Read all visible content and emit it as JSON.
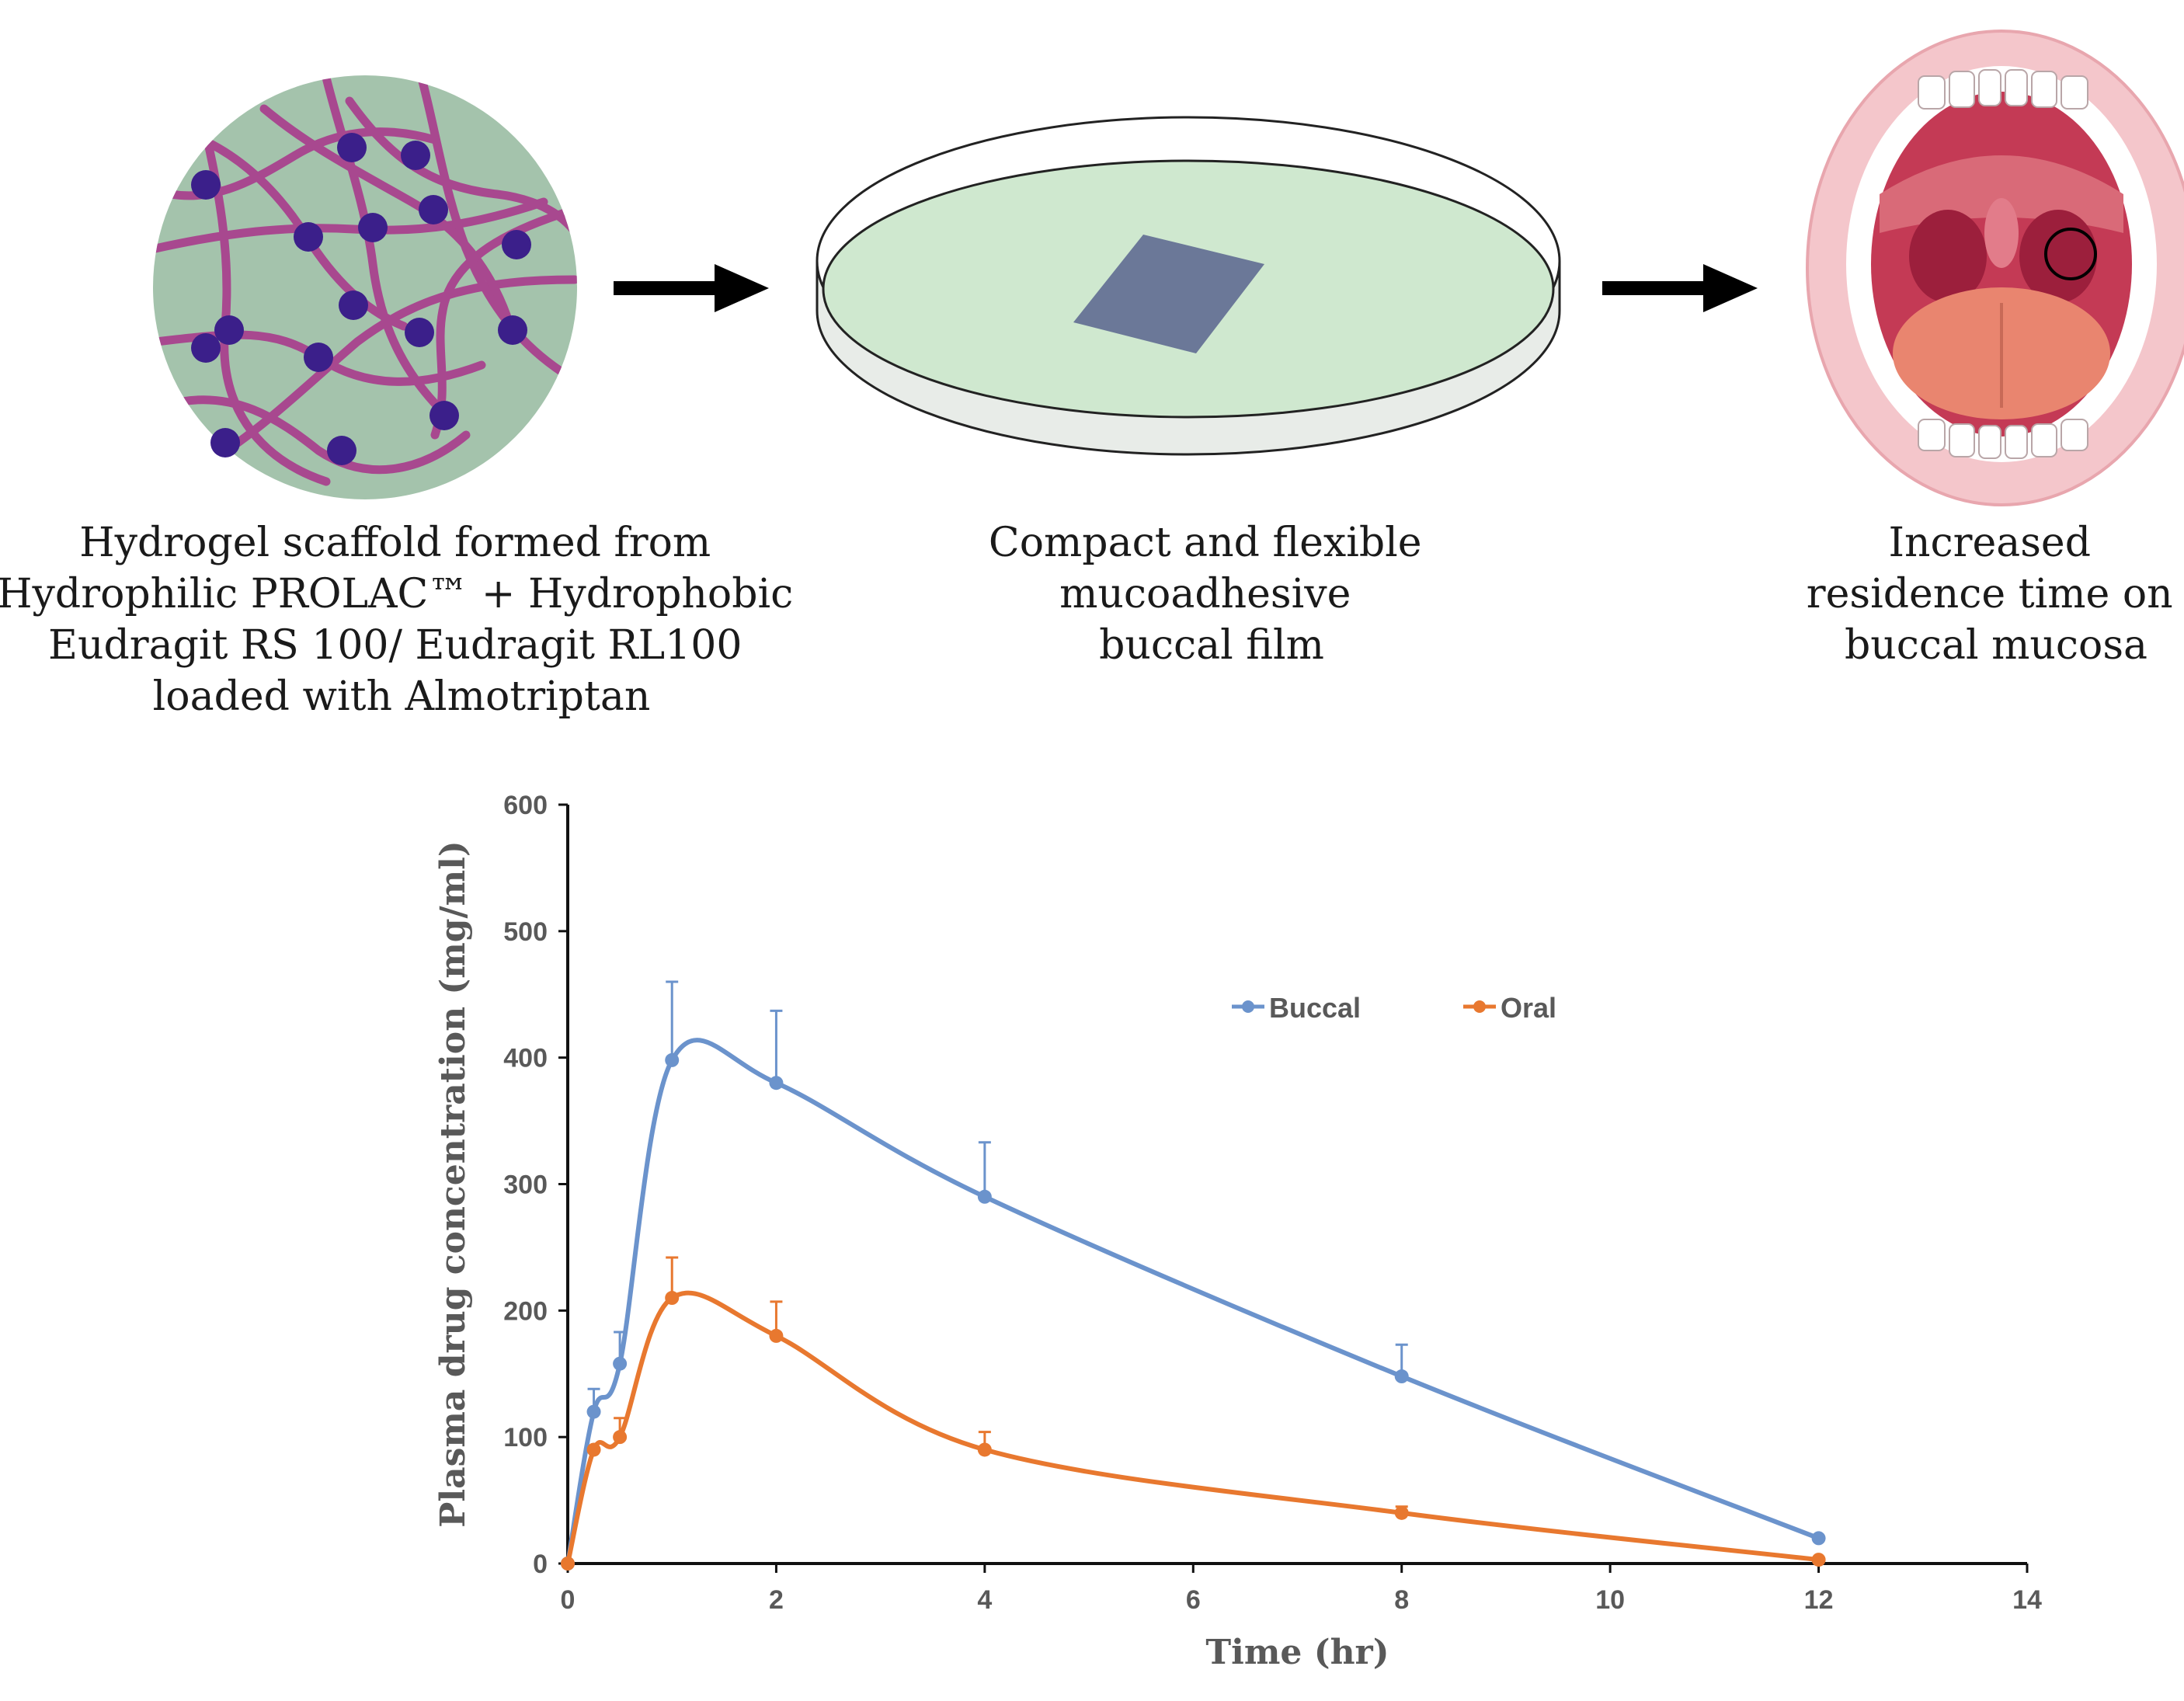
{
  "figure": {
    "steps": [
      {
        "lines": [
          "Hydrogel scaffold formed from",
          "Hydrophilic PROLAC™ + Hydrophobic",
          "Eudragit RS 100/ Eudragit RL100",
          "loaded with Almotriptan"
        ]
      },
      {
        "lines": [
          "Compact and flexible",
          "mucoadhesive",
          "buccal film"
        ]
      },
      {
        "lines": [
          "Increased",
          "residence time on",
          "buccal mucosa"
        ]
      }
    ],
    "colors": {
      "scaffold_bg": "#a4c3ac",
      "fiber": "#a8488f",
      "node": "#3b1f8a",
      "dish_liquid": "#cfe8cf",
      "dish_wall": "#e8ece8",
      "film": "#6b7898",
      "arrow": "#000000"
    }
  },
  "chart_data": {
    "type": "line",
    "xlabel": "Time (hr)",
    "ylabel": "Plasma drug concentration (mg/ml)",
    "xlim": [
      0,
      14
    ],
    "ylim": [
      0,
      600
    ],
    "xticks": [
      0,
      2,
      4,
      6,
      8,
      10,
      12,
      14
    ],
    "yticks": [
      0,
      100,
      200,
      300,
      400,
      500,
      600
    ],
    "x": [
      0,
      0.25,
      0.5,
      1,
      2,
      4,
      8,
      12
    ],
    "series": [
      {
        "name": "Buccal",
        "color": "#6b93cc",
        "values": [
          0,
          120,
          158,
          398,
          380,
          290,
          148,
          20
        ],
        "errors": [
          0,
          18,
          25,
          62,
          57,
          43,
          25,
          0
        ]
      },
      {
        "name": "Oral",
        "color": "#e8782f",
        "values": [
          0,
          90,
          100,
          210,
          180,
          90,
          40,
          3
        ],
        "errors": [
          0,
          0,
          15,
          32,
          27,
          14,
          5,
          0
        ]
      }
    ],
    "legend_position": "top-right"
  }
}
